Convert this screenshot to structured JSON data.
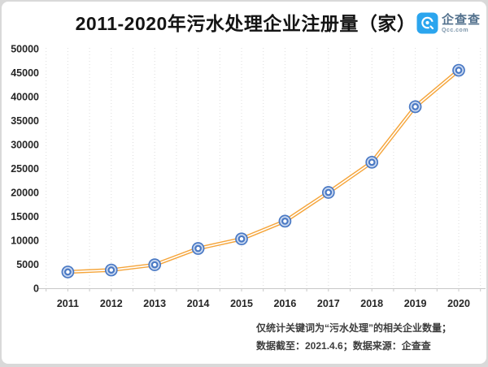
{
  "header": {
    "title": "2011-2020年污水处理企业注册量（家）",
    "logo": {
      "name": "企查查",
      "domain": "Qcc.com"
    }
  },
  "footer": {
    "line1": "仅统计关键词为“污水处理”的相关企业数量；",
    "line2": "数据截至：2021.4.6；数据来源：企查查"
  },
  "colors": {
    "line_orange": "#F5A53B",
    "marker_blue": "#4A79C4",
    "marker_fill": "#CBD9F0",
    "grid": "#DCDCDC",
    "axis": "#C8C8C8",
    "tick_label": "#262626",
    "logo_blue": "#2BA5EE"
  },
  "chart_data": {
    "type": "line",
    "title": "2011-2020年污水处理企业注册量（家）",
    "x": [
      "2011",
      "2012",
      "2013",
      "2014",
      "2015",
      "2016",
      "2017",
      "2018",
      "2019",
      "2020"
    ],
    "values": [
      3400,
      3800,
      4900,
      8300,
      10300,
      14000,
      20000,
      26300,
      37900,
      45500
    ],
    "xlabel": "",
    "ylabel": "",
    "ylim": [
      0,
      50000
    ],
    "ytick_step": 5000,
    "yticks": [
      0,
      5000,
      10000,
      15000,
      20000,
      25000,
      30000,
      35000,
      40000,
      45000,
      50000
    ],
    "grid": "vertical-dotted",
    "legend": "none",
    "marker": "double-ring-circle"
  }
}
